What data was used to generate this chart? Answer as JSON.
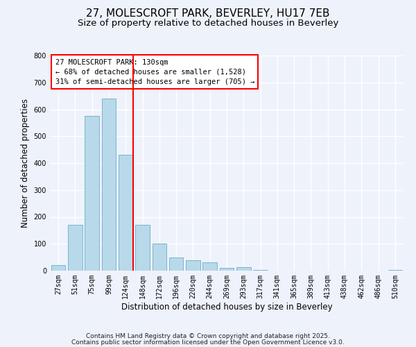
{
  "title": "27, MOLESCROFT PARK, BEVERLEY, HU17 7EB",
  "subtitle": "Size of property relative to detached houses in Beverley",
  "xlabel": "Distribution of detached houses by size in Beverley",
  "ylabel": "Number of detached properties",
  "bar_labels": [
    "27sqm",
    "51sqm",
    "75sqm",
    "99sqm",
    "124sqm",
    "148sqm",
    "172sqm",
    "196sqm",
    "220sqm",
    "244sqm",
    "269sqm",
    "293sqm",
    "317sqm",
    "341sqm",
    "365sqm",
    "389sqm",
    "413sqm",
    "438sqm",
    "462sqm",
    "486sqm",
    "510sqm"
  ],
  "bar_values": [
    20,
    170,
    575,
    640,
    430,
    170,
    100,
    50,
    38,
    32,
    10,
    12,
    2,
    1,
    1,
    1,
    0,
    0,
    0,
    0,
    2
  ],
  "bar_color": "#b8d9ea",
  "bar_edge_color": "#7ab4cc",
  "vline_x": 4.425,
  "vline_color": "red",
  "annotation_text": "27 MOLESCROFT PARK: 130sqm\n← 68% of detached houses are smaller (1,528)\n31% of semi-detached houses are larger (705) →",
  "ylim": [
    0,
    800
  ],
  "yticks": [
    0,
    100,
    200,
    300,
    400,
    500,
    600,
    700,
    800
  ],
  "footer_line1": "Contains HM Land Registry data © Crown copyright and database right 2025.",
  "footer_line2": "Contains public sector information licensed under the Open Government Licence v3.0.",
  "bg_color": "#eef2fb",
  "grid_color": "#ffffff",
  "title_fontsize": 11,
  "subtitle_fontsize": 9.5,
  "xlabel_fontsize": 8.5,
  "ylabel_fontsize": 8.5,
  "tick_fontsize": 7,
  "ann_fontsize": 7.5,
  "footer_fontsize": 6.5
}
